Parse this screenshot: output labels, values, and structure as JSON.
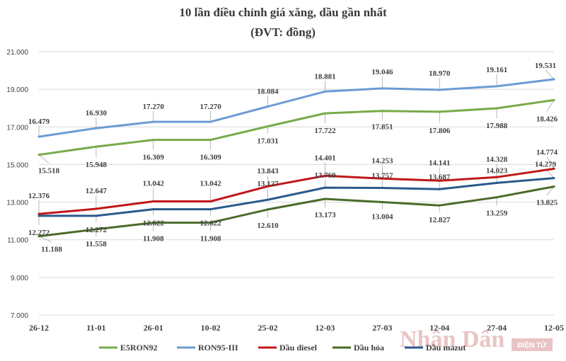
{
  "chart_data": {
    "type": "line",
    "title": "10 lần điều chỉnh giá xăng, dầu gần nhất",
    "subtitle": "(ĐVT: đồng)",
    "categories": [
      "26-12",
      "11-01",
      "26-01",
      "10-02",
      "25-02",
      "12-03",
      "27-03",
      "12-04",
      "27-04",
      "12-05"
    ],
    "ylim": [
      7000,
      21000
    ],
    "yticks": [
      "7.000",
      "9.000",
      "11.000",
      "13.000",
      "15.000",
      "17.000",
      "19.000",
      "21.000"
    ],
    "ytick_values": [
      7000,
      9000,
      11000,
      13000,
      15000,
      17000,
      19000,
      21000
    ],
    "grid": true,
    "legend_position": "bottom",
    "series": [
      {
        "name": "E5RON92",
        "color": "#77ab4a",
        "values": [
          15518,
          15948,
          16309,
          16309,
          17031,
          17722,
          17851,
          17806,
          17988,
          18426
        ],
        "labels": [
          "15.518",
          "15.948",
          "16.309",
          "16.309",
          "17.031",
          "17.722",
          "17.851",
          "17.806",
          "17.988",
          "18.426"
        ]
      },
      {
        "name": "RON95-III",
        "color": "#6c9bd2",
        "values": [
          16479,
          16930,
          17270,
          17270,
          18084,
          18881,
          19046,
          18970,
          19161,
          19531
        ],
        "labels": [
          "16.479",
          "16.930",
          "17.270",
          "17.270",
          "18.084",
          "18.881",
          "19.046",
          "18.970",
          "19.161",
          "19.531"
        ]
      },
      {
        "name": "Dầu diesel",
        "color": "#c0171b",
        "values": [
          12376,
          12647,
          13042,
          13042,
          13843,
          14401,
          14253,
          14141,
          14328,
          14774
        ],
        "labels": [
          "12.376",
          "12.647",
          "13.042",
          "13.042",
          "13.843",
          "14.401",
          "14.253",
          "14.141",
          "14.328",
          "14.774"
        ]
      },
      {
        "name": "Dầu hỏa",
        "color": "#4a6b2a",
        "values": [
          11188,
          11558,
          11908,
          11908,
          12610,
          13173,
          13004,
          12827,
          13259,
          13825
        ],
        "labels": [
          "11.188",
          "11.558",
          "11.908",
          "11.908",
          "12.610",
          "13.173",
          "13.004",
          "12.827",
          "13.259",
          "13.825"
        ]
      },
      {
        "name": "Dầu mazut",
        "color": "#2a5a8c",
        "values": [
          12272,
          12272,
          12622,
          12622,
          13127,
          13769,
          13757,
          13687,
          14023,
          14279
        ],
        "labels": [
          "12.272",
          "12.272",
          "12.622",
          "12.622",
          "13.127",
          "13.769",
          "13.757",
          "13.687",
          "14.023",
          "14.279"
        ]
      }
    ]
  },
  "watermark": {
    "logo_text": "Nhân Dân",
    "badge_text": "ĐIỆN TỬ"
  }
}
